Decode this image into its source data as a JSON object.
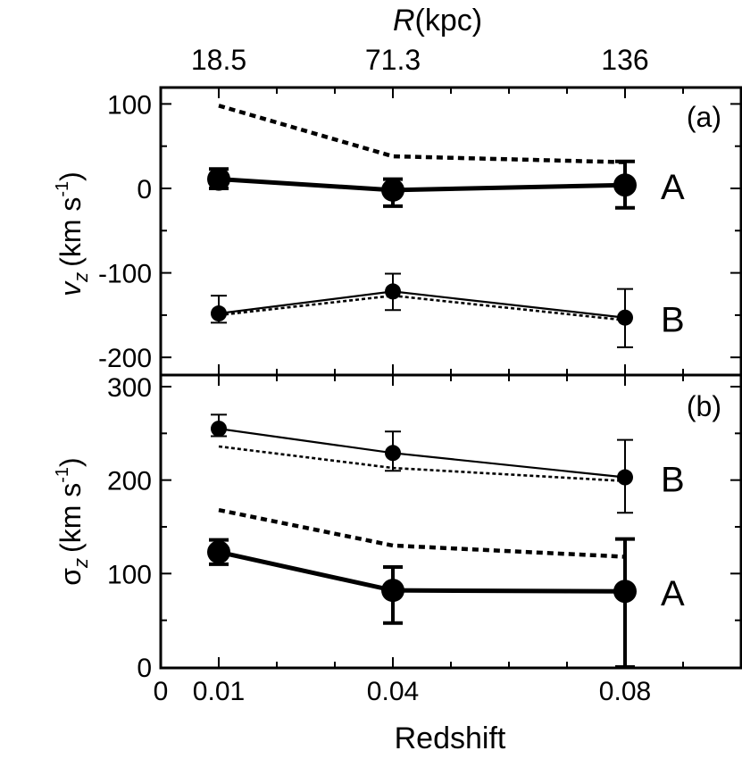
{
  "chart_data": {
    "type": "line",
    "top_axis": {
      "label_italic": "R",
      "label_rest": "(kpc)",
      "ticks": [
        {
          "x": 0.01,
          "label": "18.5"
        },
        {
          "x": 0.04,
          "label": "71.3"
        },
        {
          "x": 0.08,
          "label": "136"
        }
      ]
    },
    "x_axis": {
      "label": "Redshift",
      "xlim": [
        0,
        0.1
      ],
      "ticks": [
        {
          "x": 0,
          "label": "0"
        },
        {
          "x": 0.01,
          "label": "0.01"
        },
        {
          "x": 0.04,
          "label": "0.04"
        },
        {
          "x": 0.08,
          "label": "0.08"
        }
      ],
      "minor_ticks": [
        0.02,
        0.03,
        0.05,
        0.06,
        0.07,
        0.09
      ]
    },
    "panels": [
      {
        "id": "a",
        "tag": "(a)",
        "ylabel_symbol": "v",
        "ylabel_sub": "z",
        "ylabel_unit": "(km s",
        "ylabel_sup": "-1",
        "ylabel_close": ")",
        "ylim": [
          -220,
          120
        ],
        "yticks": [
          {
            "y": 100,
            "label": "100"
          },
          {
            "y": 0,
            "label": "0"
          },
          {
            "y": -100,
            "label": "-100"
          },
          {
            "y": -200,
            "label": "-200"
          }
        ],
        "yminor": [
          50,
          -50,
          -150
        ],
        "series": [
          {
            "name": "A",
            "style": "thick",
            "points": [
              {
                "x": 0.01,
                "y": 11,
                "err_lo": 11,
                "err_hi": 12
              },
              {
                "x": 0.04,
                "y": -2,
                "err_lo": 19,
                "err_hi": 13
              },
              {
                "x": 0.08,
                "y": 4,
                "err_lo": 27,
                "err_hi": 28
              }
            ],
            "model": [
              {
                "x": 0.01,
                "y": 98
              },
              {
                "x": 0.04,
                "y": 38
              },
              {
                "x": 0.08,
                "y": 31
              }
            ]
          },
          {
            "name": "B",
            "style": "thin",
            "points": [
              {
                "x": 0.01,
                "y": -148,
                "err_lo": 11,
                "err_hi": 21
              },
              {
                "x": 0.04,
                "y": -122,
                "err_lo": 22,
                "err_hi": 21
              },
              {
                "x": 0.08,
                "y": -153,
                "err_lo": 35,
                "err_hi": 34
              }
            ],
            "model": [
              {
                "x": 0.01,
                "y": -150
              },
              {
                "x": 0.04,
                "y": -127
              },
              {
                "x": 0.08,
                "y": -156
              }
            ]
          }
        ]
      },
      {
        "id": "b",
        "tag": "(b)",
        "ylabel_symbol": "σ",
        "ylabel_sub": "z",
        "ylabel_unit": "(km s",
        "ylabel_sup": "-1",
        "ylabel_close": ")",
        "ylim": [
          0,
          300
        ],
        "yticks": [
          {
            "y": 0,
            "label": "0"
          },
          {
            "y": 100,
            "label": "100"
          },
          {
            "y": 200,
            "label": "200"
          },
          {
            "y": 300,
            "label": "300"
          }
        ],
        "yminor": [
          50,
          150,
          250
        ],
        "series": [
          {
            "name": "B",
            "style": "thin",
            "points": [
              {
                "x": 0.01,
                "y": 255,
                "err_lo": 8,
                "err_hi": 15
              },
              {
                "x": 0.04,
                "y": 229,
                "err_lo": 19,
                "err_hi": 23
              },
              {
                "x": 0.08,
                "y": 203,
                "err_lo": 38,
                "err_hi": 40
              }
            ],
            "model": [
              {
                "x": 0.01,
                "y": 236
              },
              {
                "x": 0.04,
                "y": 213
              },
              {
                "x": 0.08,
                "y": 199
              }
            ]
          },
          {
            "name": "A",
            "style": "thick",
            "points": [
              {
                "x": 0.01,
                "y": 123,
                "err_lo": 13,
                "err_hi": 13
              },
              {
                "x": 0.04,
                "y": 82,
                "err_lo": 35,
                "err_hi": 25
              },
              {
                "x": 0.08,
                "y": 81,
                "err_lo": 81,
                "err_hi": 56
              }
            ],
            "model": [
              {
                "x": 0.01,
                "y": 168
              },
              {
                "x": 0.04,
                "y": 130
              },
              {
                "x": 0.08,
                "y": 118
              }
            ]
          }
        ]
      }
    ]
  }
}
